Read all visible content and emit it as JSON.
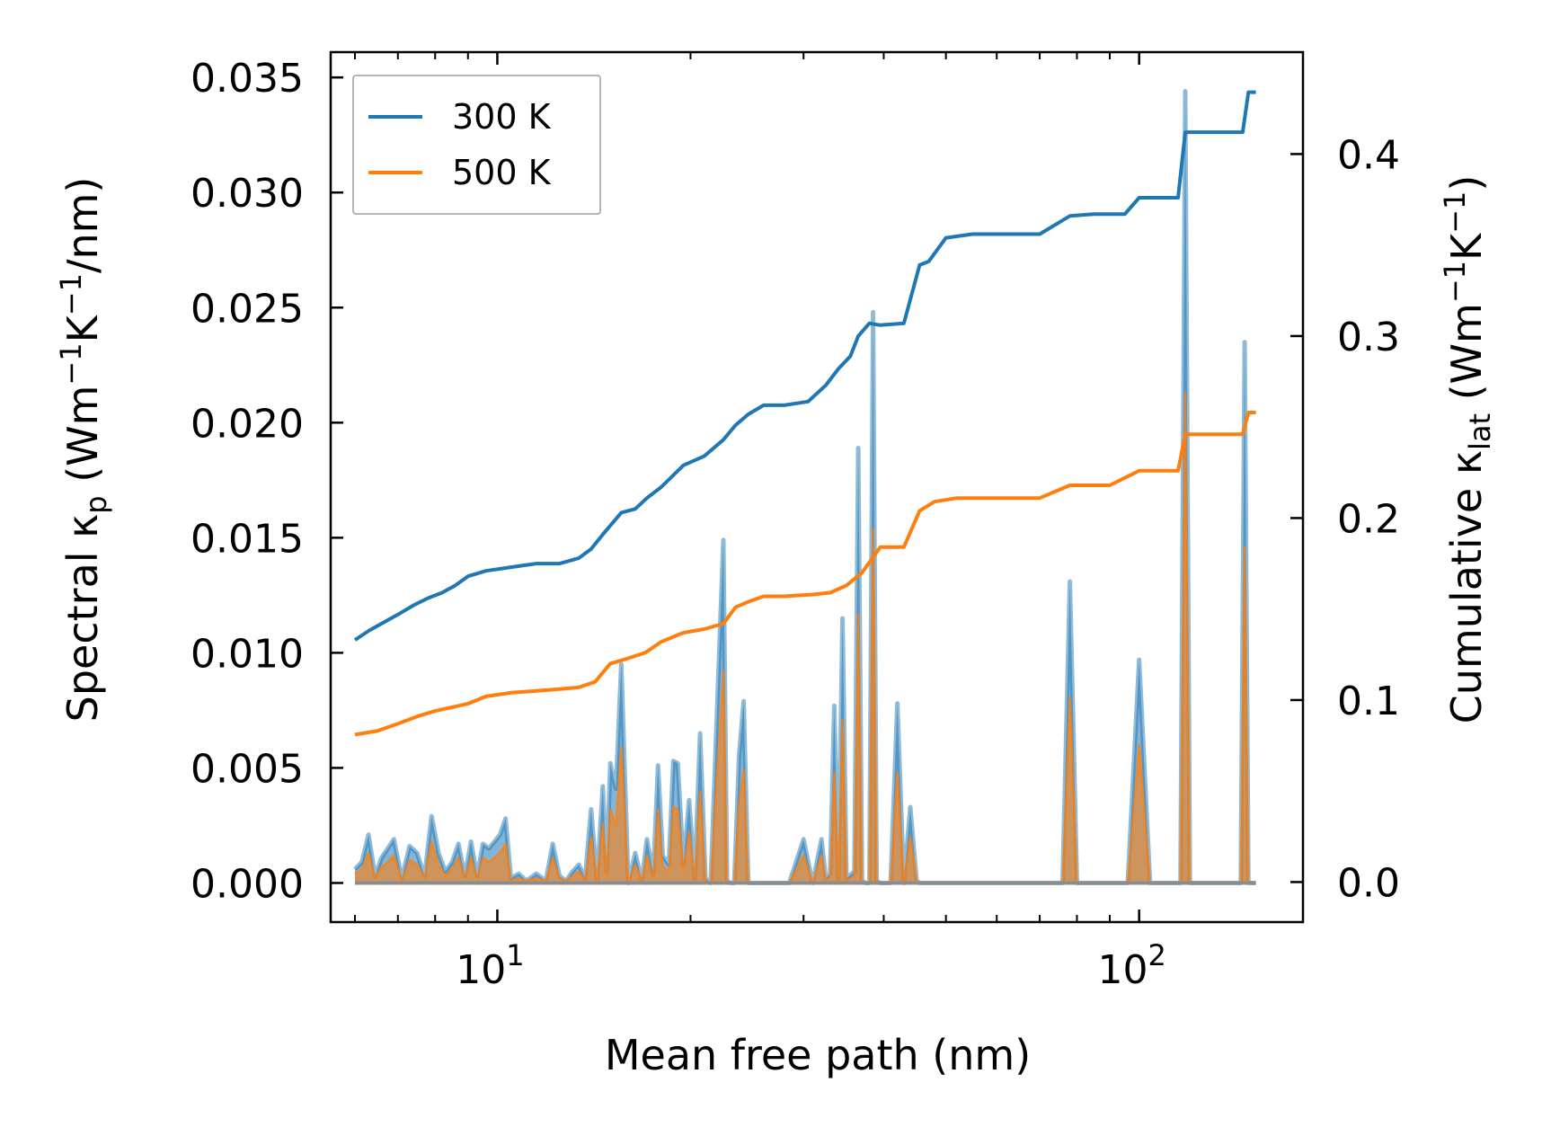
{
  "chart_data": {
    "type": "line",
    "xlabel": "Mean free path (nm)",
    "xscale": "log",
    "xlim": [
      5.5,
      180
    ],
    "x_ticks": [
      {
        "value": 10,
        "base": "10",
        "exp": "1"
      },
      {
        "value": 100,
        "base": "10",
        "exp": "2"
      }
    ],
    "left_axis": {
      "label_prefix": "Spectral κ",
      "label_sub": "p",
      "label_suffix_parts": [
        "(Wm",
        "−1",
        "K",
        "−1",
        "/nm)"
      ],
      "ylim": [
        -0.0017,
        0.0361
      ],
      "ticks": [
        0.0,
        0.005,
        0.01,
        0.015,
        0.02,
        0.025,
        0.03,
        0.035
      ],
      "tick_labels": [
        "0.000",
        "0.005",
        "0.010",
        "0.015",
        "0.020",
        "0.025",
        "0.030",
        "0.035"
      ]
    },
    "right_axis": {
      "label_prefix": "Cumulative κ",
      "label_sub": "lat",
      "label_suffix_parts": [
        "(Wm",
        "−1",
        "K",
        "−1",
        ")"
      ],
      "ylim": [
        -0.022,
        0.456
      ],
      "ticks": [
        0.0,
        0.1,
        0.2,
        0.3,
        0.4
      ],
      "tick_labels": [
        "0.0",
        "0.1",
        "0.2",
        "0.3",
        "0.4"
      ]
    },
    "legend": {
      "placement": "upper-left",
      "entries": [
        {
          "label": "300 K",
          "color": "#1f77b4"
        },
        {
          "label": "500 K",
          "color": "#ff7f0e"
        }
      ]
    },
    "colors": {
      "s300": "#1f77b4",
      "s500": "#ff7f0e",
      "fill300": "#1f77b4",
      "fill500": "#ff7f0e"
    },
    "series_cumulative": [
      {
        "name": "300 K",
        "axis": "right",
        "x": [
          6.0,
          6.3,
          6.6,
          7.0,
          7.4,
          7.8,
          8.2,
          8.6,
          9.0,
          9.6,
          10.5,
          11.5,
          12.5,
          13.4,
          14.0,
          14.6,
          15.6,
          16.4,
          17.1,
          18.0,
          19.5,
          21.0,
          22.5,
          23.5,
          24.6,
          26.0,
          28.0,
          30.5,
          32.5,
          34.0,
          35.5,
          36.5,
          38.0,
          39.5,
          43.0,
          45.5,
          47.0,
          50.0,
          55.0,
          70.0,
          78.0,
          85.0,
          95.0,
          100.0,
          115.0,
          118.0,
          123.0,
          145.0,
          148.0,
          152.0
        ],
        "y": [
          0.133,
          0.138,
          0.142,
          0.147,
          0.152,
          0.156,
          0.159,
          0.163,
          0.168,
          0.171,
          0.173,
          0.175,
          0.175,
          0.178,
          0.183,
          0.191,
          0.203,
          0.205,
          0.211,
          0.217,
          0.229,
          0.234,
          0.243,
          0.251,
          0.257,
          0.262,
          0.262,
          0.264,
          0.273,
          0.282,
          0.289,
          0.3,
          0.307,
          0.306,
          0.307,
          0.339,
          0.341,
          0.354,
          0.356,
          0.356,
          0.366,
          0.367,
          0.367,
          0.376,
          0.376,
          0.412,
          0.412,
          0.412,
          0.434,
          0.434
        ]
      },
      {
        "name": "500 K",
        "axis": "right",
        "x": [
          6.0,
          6.5,
          7.0,
          7.5,
          8.0,
          8.5,
          9.0,
          9.6,
          10.5,
          11.5,
          12.5,
          13.4,
          14.2,
          15.0,
          16.0,
          17.0,
          18.0,
          19.5,
          21.0,
          22.5,
          23.5,
          24.6,
          26.0,
          28.0,
          31.0,
          33.0,
          35.0,
          37.0,
          39.5,
          43.0,
          45.5,
          48.0,
          52.0,
          70.0,
          78.0,
          90.0,
          100.0,
          115.0,
          118.0,
          145.0,
          148.0,
          152.0
        ],
        "y": [
          0.081,
          0.083,
          0.087,
          0.091,
          0.094,
          0.096,
          0.098,
          0.102,
          0.104,
          0.105,
          0.106,
          0.107,
          0.11,
          0.12,
          0.123,
          0.126,
          0.132,
          0.137,
          0.139,
          0.142,
          0.151,
          0.154,
          0.157,
          0.157,
          0.158,
          0.159,
          0.163,
          0.17,
          0.184,
          0.184,
          0.204,
          0.209,
          0.211,
          0.211,
          0.218,
          0.218,
          0.226,
          0.226,
          0.246,
          0.246,
          0.258,
          0.258
        ]
      }
    ],
    "series_spectral": [
      {
        "name": "300 K spectral",
        "axis": "left",
        "x": [
          6.0,
          6.15,
          6.3,
          6.45,
          6.6,
          6.75,
          6.9,
          7.1,
          7.3,
          7.5,
          7.7,
          7.9,
          8.1,
          8.3,
          8.5,
          8.7,
          8.9,
          9.1,
          9.3,
          9.5,
          9.7,
          9.9,
          10.1,
          10.3,
          10.5,
          10.8,
          11.1,
          11.5,
          11.9,
          12.2,
          12.5,
          12.8,
          13.1,
          13.4,
          13.7,
          14.0,
          14.3,
          14.6,
          14.8,
          15.0,
          15.3,
          15.6,
          16.0,
          16.4,
          16.8,
          17.1,
          17.5,
          17.8,
          18.1,
          18.5,
          18.8,
          19.1,
          19.5,
          19.9,
          20.3,
          20.7,
          21.1,
          21.5,
          22.5,
          22.8,
          23.1,
          23.4,
          23.8,
          24.2,
          24.6,
          25.0,
          25.5,
          26.0,
          26.5,
          27.5,
          28.5,
          30.0,
          31.0,
          32.0,
          32.5,
          33.0,
          33.5,
          34.0,
          34.5,
          35.0,
          36.0,
          36.5,
          37.0,
          37.5,
          38.0,
          38.5,
          39.0,
          39.5,
          40.0,
          41.0,
          42.0,
          43.0,
          44.0,
          45.0,
          45.5,
          46.0,
          47.0,
          48.0,
          49.0,
          50.0,
          51.0,
          52.0,
          53.0,
          54.0,
          55.0,
          60.0,
          70.0,
          76.0,
          78.0,
          80.0,
          86.0,
          96.0,
          100.0,
          104.0,
          112.0,
          116.0,
          118.0,
          120.0,
          140.0,
          144.0,
          146.0,
          148.0,
          152.0
        ],
        "y": [
          0.0006,
          0.0009,
          0.0021,
          0.0003,
          0.0011,
          0.0015,
          0.0019,
          0.0002,
          0.0016,
          0.0013,
          0.0003,
          0.0029,
          0.0013,
          0.0005,
          0.0009,
          0.0017,
          0.0003,
          0.0018,
          0.0003,
          0.0017,
          0.0015,
          0.0018,
          0.0021,
          0.0028,
          0.0002,
          0.0004,
          0.0001,
          0.0004,
          0.0001,
          0.0017,
          0.0003,
          0.0001,
          0.0005,
          0.0008,
          0.0002,
          0.0032,
          0.0001,
          0.0042,
          0.0005,
          0.0052,
          0.0041,
          0.0095,
          0.0,
          0.0013,
          0.0001,
          0.0019,
          0.0004,
          0.0051,
          0.0012,
          0.0008,
          0.0053,
          0.0052,
          0.0008,
          0.0036,
          0.0002,
          0.0065,
          0.0002,
          0.0,
          0.0149,
          0.0001,
          0.0,
          0.0,
          0.0055,
          0.0079,
          0.0,
          0.0,
          0.0,
          0.0,
          0.0,
          0.0,
          0.0,
          0.0019,
          0.0,
          0.0019,
          0.0002,
          0.0004,
          0.0077,
          0.0001,
          0.0115,
          0.0002,
          0.0005,
          0.0189,
          0.0001,
          0.0,
          0.0,
          0.0248,
          0.0001,
          0.0,
          0.0,
          0.0,
          0.0078,
          0.0,
          0.0033,
          0.0001,
          0.0,
          0.0,
          0.0,
          0.0,
          0.0,
          0.0,
          0.0,
          0.0,
          0.0,
          0.0,
          0.0,
          0.0,
          0.0,
          0.0,
          0.0131,
          0.0,
          0.0,
          0.0,
          0.0097,
          0.0,
          0.0,
          0.0,
          0.0344,
          0.0,
          0.0,
          0.0,
          0.0235,
          0.0,
          0.0
        ]
      },
      {
        "name": "500 K spectral",
        "axis": "left",
        "x": [
          6.0,
          6.15,
          6.3,
          6.45,
          6.6,
          6.75,
          6.9,
          7.1,
          7.3,
          7.5,
          7.7,
          7.9,
          8.1,
          8.3,
          8.5,
          8.7,
          8.9,
          9.1,
          9.3,
          9.5,
          9.7,
          9.9,
          10.1,
          10.3,
          10.5,
          10.8,
          11.1,
          11.5,
          11.9,
          12.2,
          12.5,
          12.8,
          13.1,
          13.4,
          13.7,
          14.0,
          14.3,
          14.6,
          14.8,
          15.0,
          15.3,
          15.6,
          16.0,
          16.4,
          16.8,
          17.1,
          17.5,
          17.8,
          18.1,
          18.5,
          18.8,
          19.1,
          19.5,
          19.9,
          20.3,
          20.7,
          21.1,
          21.5,
          22.5,
          22.8,
          23.1,
          23.4,
          23.8,
          24.2,
          24.6,
          25.0,
          25.5,
          26.0,
          26.5,
          27.5,
          28.5,
          30.0,
          31.0,
          32.0,
          32.5,
          33.0,
          33.5,
          34.0,
          34.5,
          35.0,
          36.0,
          36.5,
          37.0,
          37.5,
          38.0,
          38.5,
          39.0,
          39.5,
          40.0,
          41.0,
          42.0,
          43.0,
          44.0,
          45.0,
          45.5,
          46.0,
          47.0,
          48.0,
          49.0,
          50.0,
          51.0,
          52.0,
          53.0,
          54.0,
          55.0,
          60.0,
          70.0,
          76.0,
          78.0,
          80.0,
          86.0,
          96.0,
          100.0,
          104.0,
          112.0,
          116.0,
          118.0,
          120.0,
          140.0,
          144.0,
          146.0,
          148.0,
          152.0
        ],
        "y": [
          0.0004,
          0.0006,
          0.0013,
          0.0002,
          0.0007,
          0.0009,
          0.0012,
          0.0001,
          0.001,
          0.0008,
          0.0002,
          0.0018,
          0.0008,
          0.0003,
          0.0006,
          0.0011,
          0.0002,
          0.0011,
          0.0002,
          0.0011,
          0.0009,
          0.0011,
          0.0013,
          0.0017,
          0.0001,
          0.0002,
          0.0001,
          0.0002,
          0.0001,
          0.0011,
          0.0002,
          0.0001,
          0.0003,
          0.0005,
          0.0001,
          0.002,
          0.0001,
          0.0026,
          0.0003,
          0.0032,
          0.0025,
          0.0059,
          0.0,
          0.0008,
          0.0001,
          0.0012,
          0.0002,
          0.0032,
          0.0007,
          0.0005,
          0.0033,
          0.0032,
          0.0005,
          0.0022,
          0.0001,
          0.004,
          0.0001,
          0.0,
          0.0092,
          0.0001,
          0.0,
          0.0,
          0.0034,
          0.0049,
          0.0,
          0.0,
          0.0,
          0.0,
          0.0,
          0.0,
          0.0,
          0.0012,
          0.0,
          0.0012,
          0.0001,
          0.0002,
          0.0048,
          0.0001,
          0.0071,
          0.0001,
          0.0003,
          0.0117,
          0.0001,
          0.0,
          0.0,
          0.0154,
          0.0001,
          0.0,
          0.0,
          0.0,
          0.0048,
          0.0,
          0.002,
          0.0001,
          0.0,
          0.0,
          0.0,
          0.0,
          0.0,
          0.0,
          0.0,
          0.0,
          0.0,
          0.0,
          0.0,
          0.0,
          0.0,
          0.0,
          0.0081,
          0.0,
          0.0,
          0.0,
          0.006,
          0.0,
          0.0,
          0.0,
          0.0213,
          0.0,
          0.0,
          0.0,
          0.0146,
          0.0,
          0.0
        ]
      }
    ]
  }
}
